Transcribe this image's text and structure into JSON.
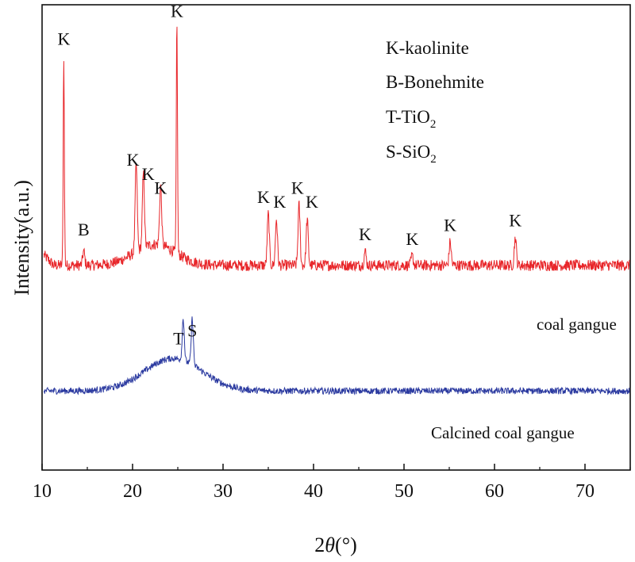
{
  "chart_data": {
    "type": "line",
    "xlabel_prefix": "2",
    "xlabel_symbol": "θ",
    "xlabel_suffix": "(°)",
    "ylabel": "Intensity(a.u.)",
    "xlim": [
      10,
      75
    ],
    "ylim": [
      0,
      100
    ],
    "xticks": [
      "10",
      "20",
      "30",
      "40",
      "50",
      "60",
      "70"
    ],
    "grid": false,
    "legend": {
      "position": "top-right",
      "entries": [
        {
          "letter": "K",
          "name": "kaolinite",
          "sub": ""
        },
        {
          "letter": "B",
          "name": "Bonehmite",
          "sub": ""
        },
        {
          "letter": "T",
          "name": "TiO",
          "sub": "2"
        },
        {
          "letter": "S",
          "name": "SiO",
          "sub": "2"
        }
      ]
    },
    "series": [
      {
        "name": "coal gangue",
        "color": "#e8262a",
        "baseline": 44,
        "peaks": [
          {
            "x": 12.4,
            "y": 89,
            "label": "K"
          },
          {
            "x": 14.6,
            "y": 47,
            "label": "B"
          },
          {
            "x": 20.4,
            "y": 63,
            "label": "K"
          },
          {
            "x": 21.2,
            "y": 60,
            "label": "K"
          },
          {
            "x": 23.1,
            "y": 57,
            "label": "K"
          },
          {
            "x": 24.9,
            "y": 95,
            "label": "K"
          },
          {
            "x": 35.0,
            "y": 55,
            "label": "K"
          },
          {
            "x": 35.9,
            "y": 54,
            "label": "K"
          },
          {
            "x": 38.4,
            "y": 57,
            "label": "K"
          },
          {
            "x": 39.3,
            "y": 54,
            "label": "K"
          },
          {
            "x": 45.7,
            "y": 47,
            "label": "K"
          },
          {
            "x": 50.9,
            "y": 46,
            "label": "K"
          },
          {
            "x": 55.1,
            "y": 49,
            "label": "K"
          },
          {
            "x": 62.3,
            "y": 50,
            "label": "K"
          }
        ]
      },
      {
        "name": "Calcined coal gangue",
        "color": "#2b3aa0",
        "baseline": 17,
        "hump": {
          "center": 24.5,
          "height": 7,
          "width": 4.5
        },
        "peaks": [
          {
            "x": 25.6,
            "y": 26,
            "label": "T"
          },
          {
            "x": 26.6,
            "y": 27,
            "label": "S"
          }
        ]
      }
    ]
  }
}
